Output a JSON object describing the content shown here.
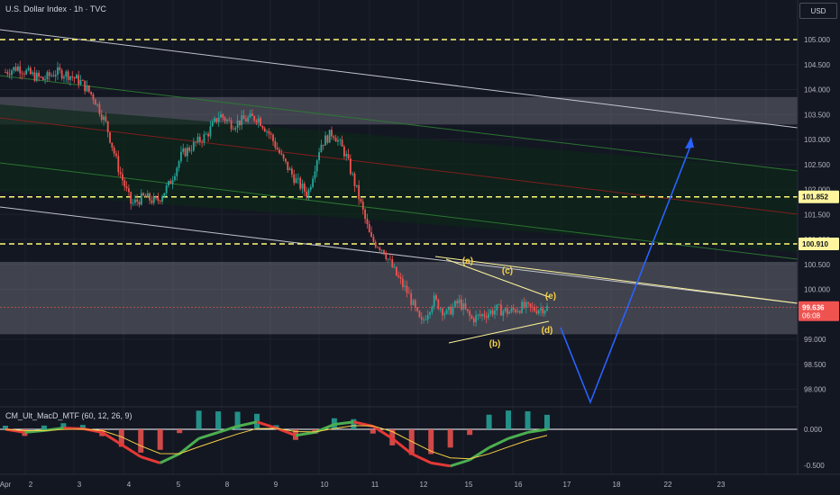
{
  "header": {
    "title": "U.S. Dollar Index · 1h · TVC"
  },
  "currency": {
    "label": "USD"
  },
  "indicator": {
    "title": "CM_Ult_MacD_MTF (60, 12, 26, 9)"
  },
  "price_axis": {
    "ticks": [
      "105.000",
      "104.500",
      "104.000",
      "103.500",
      "103.000",
      "102.500",
      "102.000",
      "101.500",
      "101.000",
      "100.500",
      "100.000",
      "99.000",
      "98.500",
      "98.000"
    ]
  },
  "indicator_axis": {
    "ticks": [
      "0.000",
      "-0.500"
    ]
  },
  "time_axis": {
    "ticks": [
      "Apr",
      "2",
      "3",
      "4",
      "5",
      "8",
      "9",
      "10",
      "11",
      "12",
      "15",
      "16",
      "17",
      "18",
      "22",
      "23"
    ]
  },
  "price_labels": {
    "level_high": "101.852",
    "level_mid": "100.910",
    "last_price": "99.636",
    "countdown": "06:08"
  },
  "wave_labels": {
    "a": "(a)",
    "b": "(b)",
    "c": "(c)",
    "d": "(d)",
    "e": "(e)"
  },
  "colors": {
    "background": "#131722",
    "up": "#26a69a",
    "down": "#ef5350",
    "level_line": "#fffa77",
    "channel_white": "#d1d4dc",
    "channel_green": "#2e7d32",
    "channel_red": "#8b1e1e",
    "zone_fill": "#787b86",
    "forecast": "#2962ff",
    "triangle": "#fff59d",
    "wave_label": "#f7d046",
    "macd_up": "#4caf50",
    "macd_down": "#e53935",
    "signal": "#f7d046",
    "hist_pos": "#26a69a",
    "hist_neg": "#ef5350"
  },
  "chart_data": {
    "type": "candlestick",
    "title": "U.S. Dollar Index",
    "interval": "1h",
    "ylim": [
      97.8,
      105.4
    ],
    "x_labels": [
      "Apr",
      "2",
      "3",
      "4",
      "5",
      "8",
      "9",
      "10",
      "11",
      "12",
      "15",
      "16",
      "17",
      "18",
      "22",
      "23"
    ],
    "series": [
      {
        "name": "U.S. Dollar Index",
        "close_path": [
          104.35,
          104.45,
          104.3,
          104.2,
          104.35,
          104.3,
          104.15,
          103.85,
          103.3,
          102.4,
          101.7,
          101.85,
          101.75,
          102.1,
          102.7,
          102.9,
          103.1,
          103.5,
          103.3,
          103.4,
          103.45,
          103.1,
          102.6,
          102.2,
          101.9,
          102.9,
          103.15,
          102.7,
          101.9,
          101.0,
          100.8,
          100.3,
          99.9,
          99.3,
          99.8,
          99.5,
          99.75,
          99.4,
          99.5,
          99.6,
          99.55,
          99.65,
          99.6,
          99.636
        ]
      }
    ],
    "horizontal_levels": [
      105.0,
      101.852,
      100.91
    ],
    "zones": [
      [
        103.3,
        103.85
      ],
      [
        99.1,
        100.55
      ]
    ],
    "last_price": 99.636,
    "forecast_path": [
      [
        99.65,
        "15"
      ],
      [
        97.9,
        "16"
      ],
      [
        103.1,
        "18"
      ]
    ],
    "indicator": {
      "name": "CM_Ult_MacD_MTF (60, 12, 26, 9)",
      "ylim": [
        -0.65,
        0.25
      ],
      "macd": [
        0.0,
        -0.05,
        -0.02,
        0.02,
        0.01,
        -0.05,
        -0.25,
        -0.45,
        -0.55,
        -0.4,
        -0.15,
        -0.05,
        0.05,
        0.12,
        0.02,
        -0.1,
        -0.05,
        0.08,
        0.12,
        0.05,
        -0.15,
        -0.4,
        -0.55,
        -0.6,
        -0.5,
        -0.3,
        -0.15,
        -0.05,
        0.0
      ]
    }
  }
}
